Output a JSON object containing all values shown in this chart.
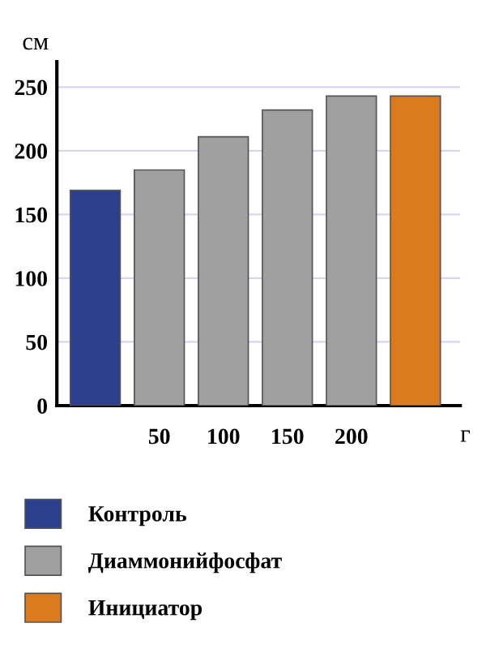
{
  "chart_data": {
    "type": "bar",
    "ylabel": "см",
    "xlabel": "г",
    "categories": [
      null,
      "50",
      "100",
      "150",
      "200",
      null
    ],
    "series": [
      {
        "name": "Контроль",
        "color": "#2b3f8c",
        "values": [
          169,
          null,
          null,
          null,
          null,
          null
        ]
      },
      {
        "name": "Диаммонийфосфат",
        "color": "#a0a0a0",
        "values": [
          null,
          185,
          211,
          232,
          243,
          null
        ]
      },
      {
        "name": "Инициатор",
        "color": "#dc7a1e",
        "values": [
          null,
          null,
          null,
          null,
          null,
          243
        ]
      }
    ],
    "ylim": [
      0,
      270
    ],
    "yticks": [
      0,
      50,
      100,
      150,
      200,
      250
    ],
    "grid": "y",
    "legend": "bottom"
  }
}
